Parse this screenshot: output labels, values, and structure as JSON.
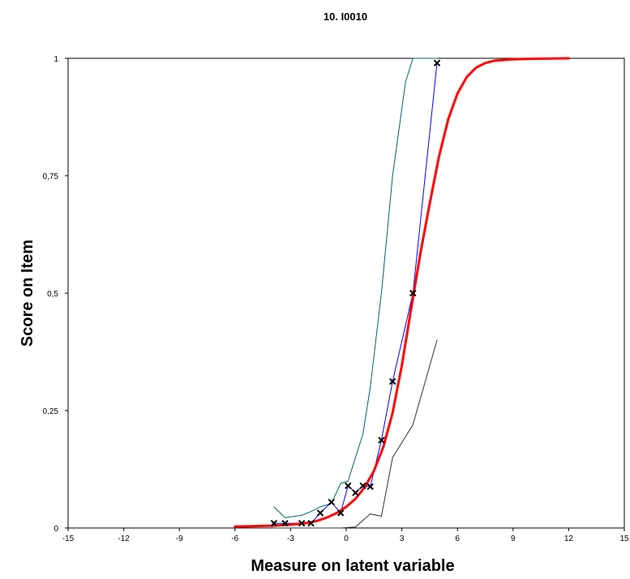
{
  "chart_data": {
    "type": "line",
    "title": "10. I0010",
    "xlabel": "Measure on latent variable",
    "ylabel": "Score on Item",
    "xlim": [
      -15,
      15
    ],
    "ylim": [
      0,
      1
    ],
    "x_ticks": [
      -15,
      -12,
      -9,
      -6,
      -3,
      0,
      3,
      6,
      9,
      12,
      15
    ],
    "x_tick_labels": [
      "-15",
      "-12",
      "-9",
      "-6",
      "-3",
      "0",
      "3",
      "6",
      "9",
      "12",
      "15"
    ],
    "y_ticks": [
      0,
      0.25,
      0.5,
      0.75,
      1
    ],
    "y_tick_labels": [
      "0",
      "0,25",
      "0,5",
      "0,75",
      "1"
    ],
    "grid": false,
    "legend": "none",
    "series": [
      {
        "role": "expected-curve",
        "color": "#ff0000",
        "points": [
          [
            -6,
            0.003
          ],
          [
            -5,
            0.004
          ],
          [
            -4,
            0.005
          ],
          [
            -3,
            0.007
          ],
          [
            -2,
            0.011
          ],
          [
            -1.5,
            0.016
          ],
          [
            -1,
            0.023
          ],
          [
            -0.5,
            0.032
          ],
          [
            0,
            0.045
          ],
          [
            0.5,
            0.062
          ],
          [
            1,
            0.087
          ],
          [
            1.5,
            0.122
          ],
          [
            2,
            0.172
          ],
          [
            2.5,
            0.245
          ],
          [
            3,
            0.346
          ],
          [
            3.5,
            0.466
          ],
          [
            4,
            0.585
          ],
          [
            4.5,
            0.69
          ],
          [
            5,
            0.79
          ],
          [
            5.5,
            0.87
          ],
          [
            6,
            0.925
          ],
          [
            6.5,
            0.96
          ],
          [
            7,
            0.98
          ],
          [
            7.5,
            0.99
          ],
          [
            8,
            0.995
          ],
          [
            9,
            0.998
          ],
          [
            10,
            0.999
          ],
          [
            12,
            1.0
          ]
        ]
      },
      {
        "role": "observed-means",
        "color": "#0000ff",
        "marker_color": "#000000",
        "points": [
          [
            -3.9,
            0.01
          ],
          [
            -3.3,
            0.01
          ],
          [
            -2.4,
            0.01
          ],
          [
            -1.9,
            0.01
          ],
          [
            -1.4,
            0.032
          ],
          [
            -0.8,
            0.055
          ],
          [
            -0.3,
            0.032
          ],
          [
            0.1,
            0.09
          ],
          [
            0.5,
            0.075
          ],
          [
            0.9,
            0.09
          ],
          [
            1.3,
            0.088
          ],
          [
            1.9,
            0.187
          ],
          [
            2.5,
            0.312
          ],
          [
            3.6,
            0.5
          ],
          [
            4.9,
            0.99
          ]
        ]
      },
      {
        "role": "upper-band",
        "color": "#006666",
        "points": [
          [
            -3.9,
            0.045
          ],
          [
            -3.3,
            0.022
          ],
          [
            -2.4,
            0.027
          ],
          [
            -1.9,
            0.035
          ],
          [
            -1.4,
            0.045
          ],
          [
            -0.8,
            0.052
          ],
          [
            -0.3,
            0.095
          ],
          [
            0.1,
            0.1
          ],
          [
            0.5,
            0.15
          ],
          [
            0.9,
            0.2
          ],
          [
            1.3,
            0.3
          ],
          [
            1.9,
            0.5
          ],
          [
            2.5,
            0.75
          ],
          [
            3.2,
            0.95
          ],
          [
            3.6,
            1.0
          ],
          [
            4.9,
            1.0
          ]
        ]
      },
      {
        "role": "lower-band",
        "color": "#333333",
        "points": [
          [
            -3.9,
            0.0
          ],
          [
            -0.3,
            0.0
          ],
          [
            0.5,
            0.002
          ],
          [
            1.3,
            0.03
          ],
          [
            1.9,
            0.025
          ],
          [
            2.5,
            0.15
          ],
          [
            3.6,
            0.22
          ],
          [
            4.9,
            0.4
          ]
        ]
      }
    ]
  }
}
